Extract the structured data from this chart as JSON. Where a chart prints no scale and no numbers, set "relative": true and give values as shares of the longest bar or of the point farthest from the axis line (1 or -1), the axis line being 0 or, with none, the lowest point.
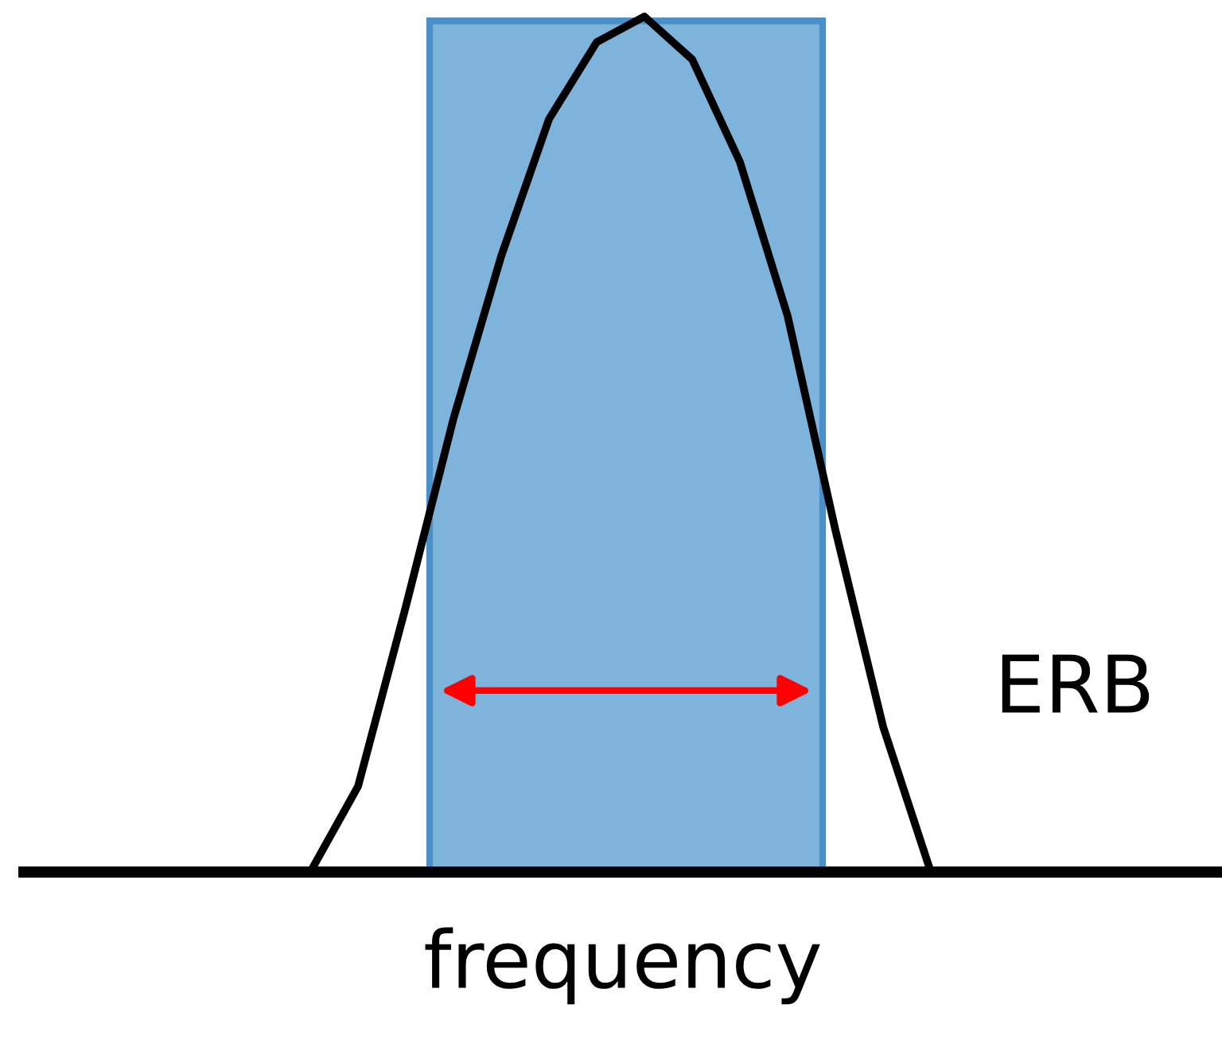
{
  "chart_data": {
    "type": "line",
    "relative": true,
    "xlabel": "frequency",
    "categories": [
      null,
      null,
      null,
      null,
      null,
      null,
      null,
      null,
      null,
      null,
      null,
      null,
      null,
      null,
      null,
      null,
      null,
      null,
      null,
      null,
      null,
      null,
      null,
      null,
      null,
      null
    ],
    "series": [
      {
        "color": "#000000",
        "values": [
          null,
          null,
          null,
          null,
          null,
          null,
          0,
          0.1,
          0.31,
          0.53,
          0.72,
          0.88,
          0.97,
          1,
          0.95,
          0.83,
          0.65,
          0.4,
          0.17,
          0,
          null,
          null,
          null,
          null,
          null,
          null
        ]
      }
    ],
    "annotations": [
      "ERB"
    ],
    "legend": false,
    "marker": "none",
    "line_style": "solid",
    "tick_labels": false
  }
}
